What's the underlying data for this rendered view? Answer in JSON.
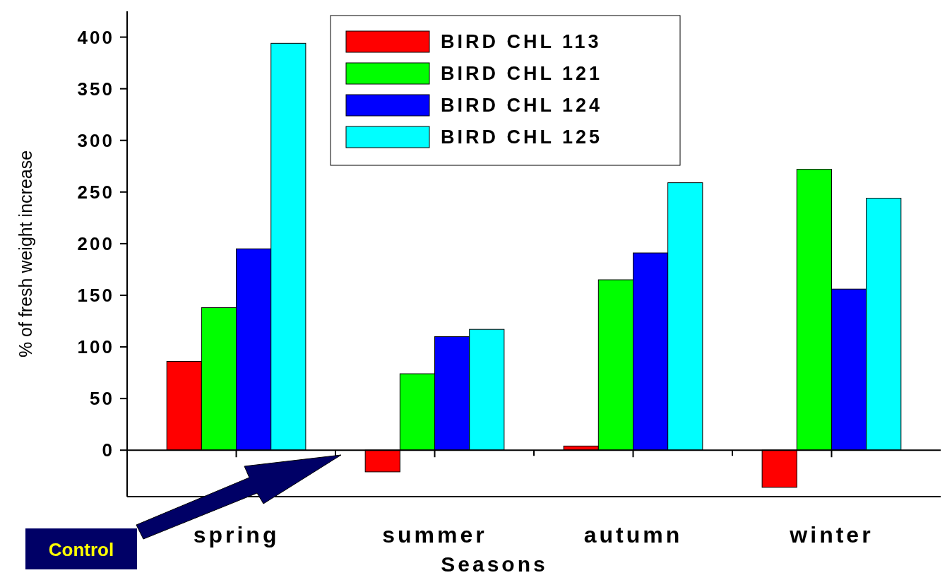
{
  "chart_data": {
    "type": "bar",
    "xlabel": "Seasons",
    "ylabel": "% of fresh weight increase",
    "categories": [
      "spring",
      "summer",
      "autumn",
      "winter"
    ],
    "series": [
      {
        "name": "BIRD CHL 113",
        "color": "#ff0000",
        "values": [
          86,
          -21,
          4,
          -36
        ]
      },
      {
        "name": "BIRD CHL 121",
        "color": "#00ff00",
        "values": [
          138,
          74,
          165,
          272
        ]
      },
      {
        "name": "BIRD CHL 124",
        "color": "#0000ff",
        "values": [
          195,
          110,
          191,
          156
        ]
      },
      {
        "name": "BIRD CHL 125",
        "color": "#00ffff",
        "values": [
          394,
          117,
          259,
          244
        ]
      }
    ],
    "ylim": [
      -45,
      425
    ],
    "yticks": [
      0,
      50,
      100,
      150,
      200,
      250,
      300,
      350,
      400
    ],
    "legend": "top",
    "annotations": [
      "Control"
    ]
  }
}
